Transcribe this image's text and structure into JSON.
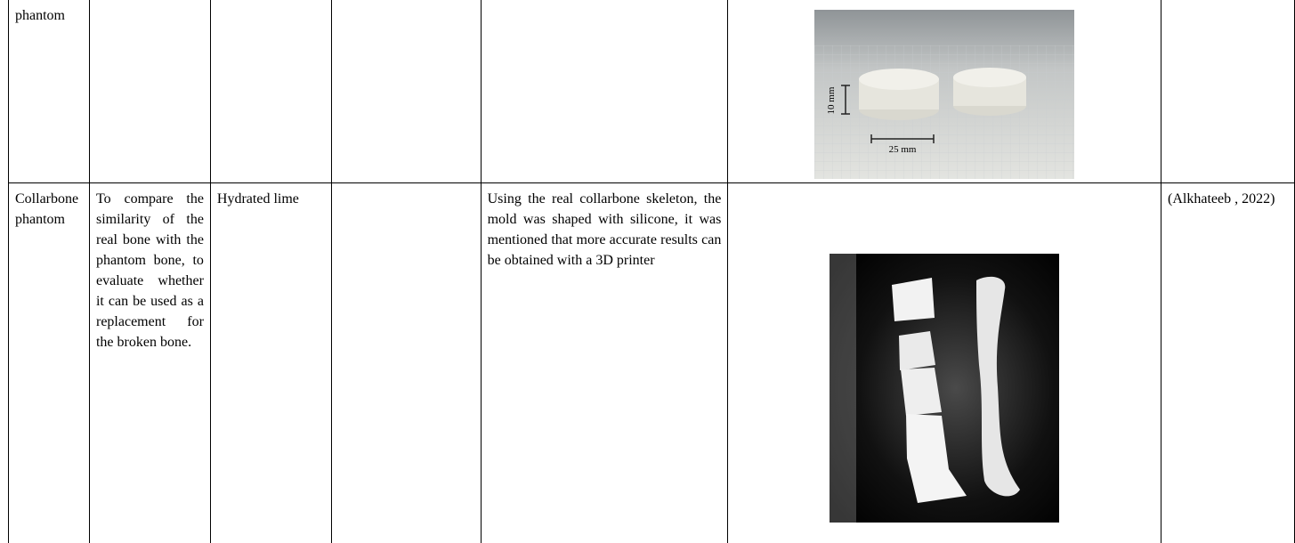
{
  "table": {
    "rows": [
      {
        "sample": "phantom",
        "figure_labels": [
          "10 mm",
          "25 mm"
        ]
      },
      {
        "sample": "Collarbone phantom",
        "purpose": "To compare the similarity of the real bone with the phantom bone, to evaluate whether it can be used as a replacement for the broken bone.",
        "material": "Hydrated lime",
        "method": "Using the real collarbone skeleton, the mold was shaped with silicone, it was mentioned that more accurate results can be obtained with a 3D printer",
        "reference": "(Alkhateeb , 2022)"
      }
    ]
  }
}
